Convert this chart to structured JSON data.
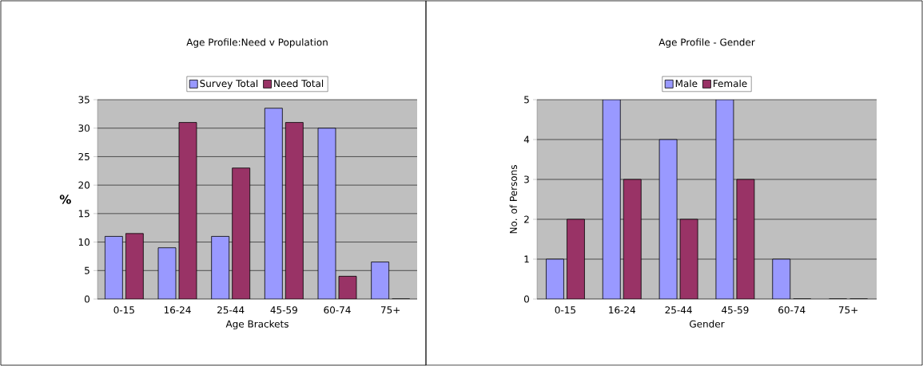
{
  "chart_data": [
    {
      "type": "bar",
      "title": "Age Profile:Need v Population",
      "xlabel": "Age Brackets",
      "ylabel": "%",
      "categories": [
        "0-15",
        "16-24",
        "25-44",
        "45-59",
        "60-74",
        "75+"
      ],
      "series": [
        {
          "name": "Survey Total",
          "color": "#9999ff",
          "values": [
            11,
            9,
            11,
            33.5,
            30,
            6.5
          ]
        },
        {
          "name": "Need Total",
          "color": "#993366",
          "values": [
            11.5,
            31,
            23,
            31,
            4,
            0
          ]
        }
      ],
      "ylim": [
        0,
        35
      ],
      "yticks": [
        0,
        5,
        10,
        15,
        20,
        25,
        30,
        35
      ],
      "grid": "y",
      "legend": "top"
    },
    {
      "type": "bar",
      "title": "Age Profile - Gender",
      "xlabel": "Gender",
      "ylabel": "No. of Persons",
      "categories": [
        "0-15",
        "16-24",
        "25-44",
        "45-59",
        "60-74",
        "75+"
      ],
      "series": [
        {
          "name": "Male",
          "color": "#9999ff",
          "values": [
            1,
            5,
            4,
            5,
            1,
            0
          ]
        },
        {
          "name": "Female",
          "color": "#993366",
          "values": [
            2,
            3,
            2,
            3,
            0,
            0
          ]
        }
      ],
      "ylim": [
        0,
        5
      ],
      "yticks": [
        0,
        1,
        2,
        3,
        4,
        5
      ],
      "grid": "y",
      "legend": "top"
    }
  ]
}
